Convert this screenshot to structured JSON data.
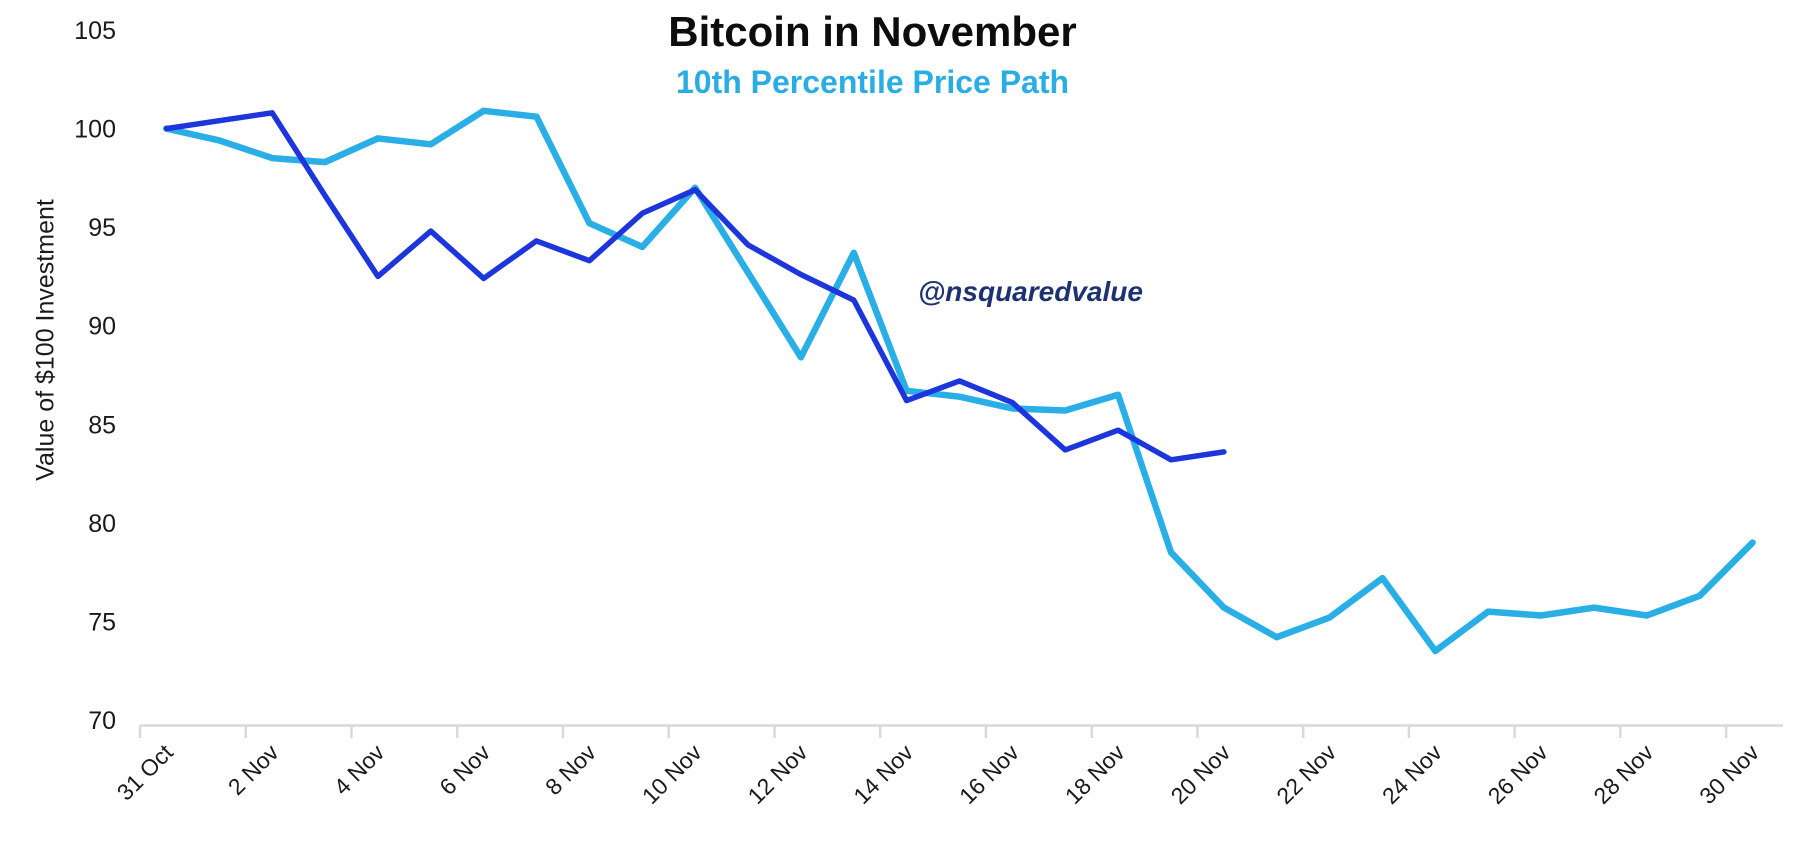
{
  "chart": {
    "title": "Bitcoin in November",
    "subtitle": "10th Percentile Price Path",
    "y_axis_title": "Value of $100 Investment",
    "annotation": "@nsquaredvalue",
    "colors": {
      "title_text": "#0d0d0d",
      "subtitle_text": "#29ade3",
      "cyan_line": "#2aaee6",
      "dark_blue_line": "#1d36db",
      "annotation_text": "#1e3272",
      "axis_line": "#d9d9d9",
      "tick_label": "#1a1a1a"
    }
  },
  "chart_data": {
    "type": "line",
    "title": "Bitcoin in November",
    "subtitle": "10th Percentile Price Path",
    "xlabel": "",
    "ylabel": "Value of $100 Investment",
    "ylim": [
      70,
      105
    ],
    "yticks": [
      70,
      75,
      80,
      85,
      90,
      95,
      100,
      105
    ],
    "grid": false,
    "legend_position": "none",
    "x_tick_rotation": -45,
    "categories": [
      "31 Oct",
      "1 Nov",
      "2 Nov",
      "3 Nov",
      "4 Nov",
      "5 Nov",
      "6 Nov",
      "7 Nov",
      "8 Nov",
      "9 Nov",
      "10 Nov",
      "11 Nov",
      "12 Nov",
      "13 Nov",
      "14 Nov",
      "15 Nov",
      "16 Nov",
      "17 Nov",
      "18 Nov",
      "19 Nov",
      "20 Nov",
      "21 Nov",
      "22 Nov",
      "23 Nov",
      "24 Nov",
      "25 Nov",
      "26 Nov",
      "27 Nov",
      "28 Nov",
      "29 Nov",
      "30 Nov"
    ],
    "x_tick_labels": [
      "31 Oct",
      "2 Nov",
      "4 Nov",
      "6 Nov",
      "8 Nov",
      "10 Nov",
      "12 Nov",
      "14 Nov",
      "16 Nov",
      "18 Nov",
      "20 Nov",
      "22 Nov",
      "24 Nov",
      "26 Nov",
      "28 Nov",
      "30 Nov"
    ],
    "series": [
      {
        "name": "10th_percentile_price_path",
        "color": "#2aaee6",
        "values": [
          100,
          99.4,
          98.5,
          98.3,
          99.5,
          99.2,
          100.9,
          100.6,
          95.2,
          94.0,
          97.0,
          92.7,
          88.4,
          93.7,
          86.7,
          86.4,
          85.8,
          85.7,
          86.5,
          78.5,
          75.7,
          74.2,
          75.2,
          77.2,
          73.5,
          75.5,
          75.3,
          75.7,
          75.3,
          76.3,
          79.0
        ]
      },
      {
        "name": "dark_blue_actual_path",
        "color": "#1d36db",
        "values": [
          100,
          100.4,
          100.8,
          96.6,
          92.5,
          94.8,
          92.4,
          94.3,
          93.3,
          95.7,
          96.9,
          94.1,
          92.6,
          91.3,
          86.2,
          87.2,
          86.1,
          83.7,
          84.7,
          83.2,
          83.6
        ]
      }
    ],
    "annotation": {
      "text": "@nsquaredvalue"
    }
  }
}
